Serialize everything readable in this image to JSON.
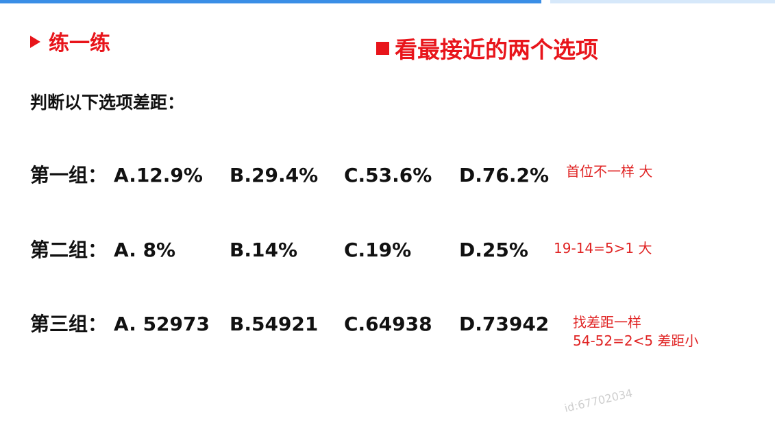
{
  "colors": {
    "accent_red": "#e8151b",
    "top_bar": "#3a8ee6",
    "top_bar_light": "#d6e8fa"
  },
  "header": {
    "section_title": "练一练",
    "section_icon": "arrow-bullet",
    "tip": "看最接近的两个选项",
    "tip_icon": "square-bullet"
  },
  "instruction": "判断以下选项差距：",
  "groups": [
    {
      "label": "第一组：",
      "options": [
        "A.12.9%",
        "B.29.4%",
        "C.53.6%",
        "D.76.2%"
      ],
      "notes": [
        "首位不一样 大"
      ]
    },
    {
      "label": "第二组：",
      "options": [
        "A. 8%",
        "B.14%",
        "C.19%",
        "D.25%"
      ],
      "notes": [
        "19-14=5>1 大"
      ]
    },
    {
      "label": "第三组：",
      "options": [
        "A. 52973",
        "B.54921",
        "C.64938",
        "D.73942"
      ],
      "notes": [
        "找差距一样",
        "54-52=2<5 差距小"
      ]
    }
  ],
  "watermark": "id:67702034"
}
